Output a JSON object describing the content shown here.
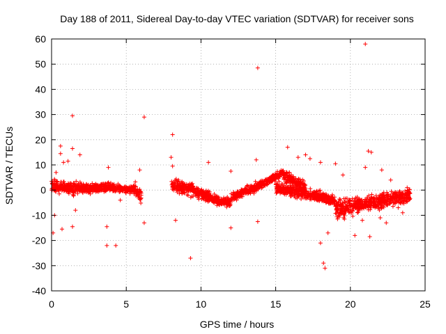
{
  "chart_data": {
    "type": "scatter",
    "title": "Day 188 of 2011, Sidereal Day-to-day VTEC variation (SDTVAR) for receiver sons",
    "xlabel": "GPS time / hours",
    "ylabel": "SDTVAR / TECUs",
    "xlim": [
      0,
      25
    ],
    "ylim": [
      -40,
      60
    ],
    "xticks": [
      "0",
      "5",
      "10",
      "15",
      "20",
      "25"
    ],
    "yticks": [
      "-40",
      "-30",
      "-20",
      "-10",
      "0",
      "10",
      "20",
      "30",
      "40",
      "50",
      "60"
    ],
    "grid": true,
    "marker": "+",
    "color": "#ff0000",
    "series": [
      {
        "name": "SDTVAR",
        "segments": [
          {
            "x0": 0.0,
            "x1": 2.0,
            "y_start": 1.5,
            "y_end": 0.5,
            "spread": 3.5
          },
          {
            "x0": 2.0,
            "x1": 4.0,
            "y_start": 0.5,
            "y_end": 1.5,
            "spread": 2.5
          },
          {
            "x0": 4.0,
            "x1": 5.5,
            "y_start": 1.0,
            "y_end": 0.0,
            "spread": 2.0
          },
          {
            "x0": 5.5,
            "x1": 6.0,
            "y_start": 1.0,
            "y_end": -2.0,
            "spread": 4.0
          },
          {
            "x0": 8.0,
            "x1": 9.5,
            "y_start": 2.0,
            "y_end": 0.0,
            "spread": 3.5
          },
          {
            "x0": 9.5,
            "x1": 11.0,
            "y_start": 0.0,
            "y_end": -4.0,
            "spread": 3.0
          },
          {
            "x0": 11.0,
            "x1": 12.0,
            "y_start": -4.0,
            "y_end": -5.0,
            "spread": 2.5
          },
          {
            "x0": 12.0,
            "x1": 14.0,
            "y_start": -3.0,
            "y_end": 2.0,
            "spread": 2.5
          },
          {
            "x0": 14.0,
            "x1": 15.5,
            "y_start": 2.0,
            "y_end": 7.0,
            "spread": 2.0
          },
          {
            "x0": 15.5,
            "x1": 17.0,
            "y_start": 6.0,
            "y_end": 1.0,
            "spread": 3.0
          },
          {
            "x0": 15.0,
            "x1": 19.0,
            "y_start": 1.0,
            "y_end": -4.0,
            "spread": 3.0
          },
          {
            "x0": 19.0,
            "x1": 20.5,
            "y_start": -8.0,
            "y_end": -6.0,
            "spread": 5.0
          },
          {
            "x0": 20.5,
            "x1": 24.0,
            "y_start": -6.0,
            "y_end": -2.0,
            "spread": 4.0
          }
        ],
        "outliers": [
          [
            0.1,
            -17
          ],
          [
            0.3,
            7
          ],
          [
            0.6,
            17.5
          ],
          [
            0.6,
            14.5
          ],
          [
            0.7,
            -15.5
          ],
          [
            0.8,
            11
          ],
          [
            1.1,
            11.5
          ],
          [
            1.4,
            29.5
          ],
          [
            1.4,
            16.5
          ],
          [
            1.4,
            -14.5
          ],
          [
            1.9,
            14
          ],
          [
            3.7,
            -14.5
          ],
          [
            3.7,
            -22
          ],
          [
            4.3,
            -22
          ],
          [
            3.8,
            9
          ],
          [
            6.2,
            29
          ],
          [
            6.2,
            -13
          ],
          [
            8.1,
            22
          ],
          [
            8.0,
            13
          ],
          [
            8.3,
            -12
          ],
          [
            9.3,
            -27
          ],
          [
            10.5,
            11
          ],
          [
            12.0,
            -15
          ],
          [
            12.0,
            7.5
          ],
          [
            13.8,
            48.5
          ],
          [
            13.8,
            -12.5
          ],
          [
            13.7,
            12
          ],
          [
            15.8,
            17
          ],
          [
            16.5,
            13
          ],
          [
            17.0,
            14
          ],
          [
            18.0,
            11
          ],
          [
            18.0,
            -21
          ],
          [
            18.2,
            -29
          ],
          [
            18.3,
            -31
          ],
          [
            18.5,
            -17
          ],
          [
            19.0,
            10.5
          ],
          [
            19.5,
            6
          ],
          [
            20.3,
            -18
          ],
          [
            21.0,
            58
          ],
          [
            21.2,
            15.5
          ],
          [
            21.4,
            15
          ],
          [
            21.3,
            -18.5
          ],
          [
            21.0,
            9
          ],
          [
            22.1,
            8
          ],
          [
            22.0,
            -11
          ],
          [
            22.7,
            4
          ],
          [
            23.2,
            -7
          ],
          [
            23.8,
            1
          ],
          [
            5.9,
            8
          ],
          [
            1.6,
            -8
          ],
          [
            0.2,
            -10
          ],
          [
            8.1,
            9.5
          ],
          [
            4.6,
            -4
          ],
          [
            17.3,
            12.5
          ],
          [
            19.6,
            -11.5
          ],
          [
            20.8,
            -12
          ],
          [
            22.4,
            -13
          ],
          [
            23.5,
            -9
          ]
        ]
      }
    ]
  }
}
